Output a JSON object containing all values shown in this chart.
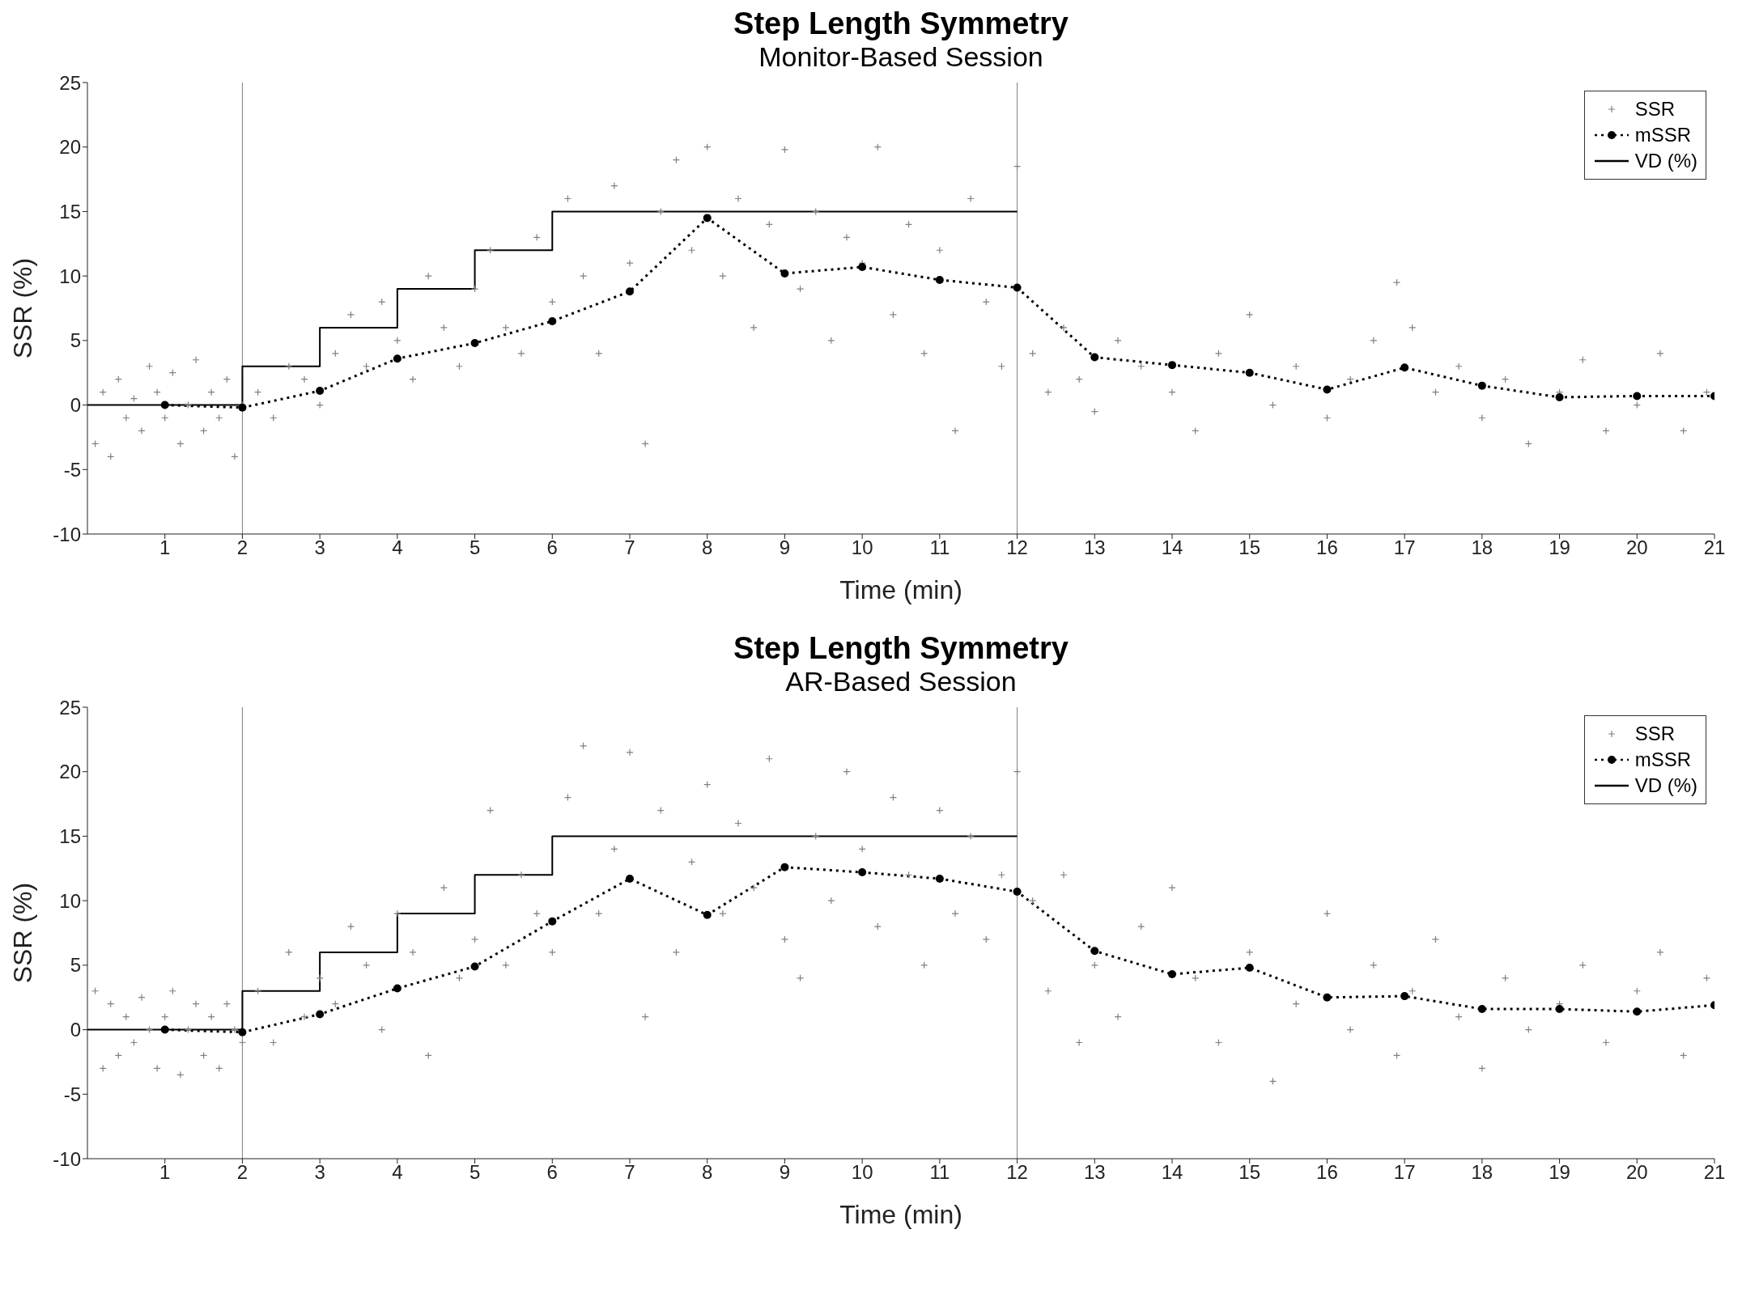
{
  "chart_data": [
    {
      "type": "scatter",
      "title": "Step Length Symmetry",
      "subtitle": "Monitor-Based Session",
      "xlabel": "Time (min)",
      "ylabel": "SSR (%)",
      "xlim": [
        0,
        21
      ],
      "xticks": [
        1,
        2,
        3,
        4,
        5,
        6,
        7,
        8,
        9,
        10,
        11,
        12,
        13,
        14,
        15,
        16,
        17,
        18,
        19,
        20,
        21
      ],
      "ylim": [
        -10,
        25
      ],
      "yticks": [
        -10,
        -5,
        0,
        5,
        10,
        15,
        20,
        25
      ],
      "legend": "top right",
      "ref_lines": [
        {
          "axis": "x",
          "value": 2,
          "color": "#808080"
        },
        {
          "axis": "x",
          "value": 12,
          "color": "#808080"
        }
      ],
      "series": [
        {
          "name": "SSR",
          "marker": "cross",
          "color": "#808080",
          "x": [
            0.1,
            0.2,
            0.3,
            0.4,
            0.5,
            0.6,
            0.7,
            0.8,
            0.9,
            1.0,
            1.1,
            1.2,
            1.3,
            1.4,
            1.5,
            1.6,
            1.7,
            1.8,
            1.9,
            2.0,
            2.2,
            2.4,
            2.6,
            2.8,
            3.0,
            3.2,
            3.4,
            3.6,
            3.8,
            4.0,
            4.2,
            4.4,
            4.6,
            4.8,
            5.0,
            5.2,
            5.4,
            5.6,
            5.8,
            6.0,
            6.2,
            6.4,
            6.6,
            6.8,
            7.0,
            7.2,
            7.4,
            7.6,
            7.8,
            8.0,
            8.2,
            8.4,
            8.6,
            8.8,
            9.0,
            9.2,
            9.4,
            9.6,
            9.8,
            10.0,
            10.2,
            10.4,
            10.6,
            10.8,
            11.0,
            11.2,
            11.4,
            11.6,
            11.8,
            12.0,
            12.2,
            12.4,
            12.6,
            12.8,
            13.0,
            13.3,
            13.6,
            14.0,
            14.3,
            14.6,
            15.0,
            15.3,
            15.6,
            16.0,
            16.3,
            16.6,
            16.9,
            17.1,
            17.4,
            17.7,
            18.0,
            18.3,
            18.6,
            19.0,
            19.3,
            19.6,
            20.0,
            20.3,
            20.6,
            20.9
          ],
          "values": [
            -3,
            1,
            -4,
            2,
            -1,
            0.5,
            -2,
            3,
            1,
            -1,
            2.5,
            -3,
            0,
            3.5,
            -2,
            1,
            -1,
            2,
            -4,
            0,
            1,
            -1,
            3,
            2,
            0,
            4,
            7,
            3,
            8,
            5,
            2,
            10,
            6,
            3,
            9,
            12,
            6,
            4,
            13,
            8,
            16,
            10,
            4,
            17,
            11,
            -3,
            15,
            19,
            12,
            20,
            10,
            16,
            6,
            14,
            19.8,
            9,
            15,
            5,
            13,
            11,
            20,
            7,
            14,
            4,
            12,
            -2,
            16,
            8,
            3,
            18.5,
            4,
            1,
            6,
            2,
            -0.5,
            5,
            3,
            1,
            -2,
            4,
            7,
            0,
            3,
            -1,
            2,
            5,
            9.5,
            6,
            1,
            3,
            -1,
            2,
            -3,
            1,
            3.5,
            -2,
            0,
            4,
            -2,
            1
          ]
        },
        {
          "name": "mSSR",
          "type": "line",
          "marker": "circle",
          "line_style": "dotted",
          "color": "#000000",
          "x": [
            1,
            2,
            3,
            4,
            5,
            6,
            7,
            8,
            9,
            10,
            11,
            12,
            13,
            14,
            15,
            16,
            17,
            18,
            19,
            20,
            21
          ],
          "values": [
            0,
            -0.2,
            1.1,
            3.6,
            4.8,
            6.5,
            8.8,
            14.5,
            10.2,
            10.7,
            9.7,
            9.1,
            3.7,
            3.1,
            2.5,
            1.2,
            2.9,
            1.5,
            0.6,
            0.7,
            0.7
          ]
        },
        {
          "name": "VD (%)",
          "type": "step",
          "line_style": "solid",
          "color": "#000000",
          "x": [
            0,
            2,
            3,
            4,
            5,
            6,
            12
          ],
          "values": [
            0,
            3,
            6,
            9,
            12,
            15,
            15
          ]
        }
      ]
    },
    {
      "type": "scatter",
      "title": "Step Length Symmetry",
      "subtitle": "AR-Based Session",
      "xlabel": "Time (min)",
      "ylabel": "SSR (%)",
      "xlim": [
        0,
        21
      ],
      "xticks": [
        1,
        2,
        3,
        4,
        5,
        6,
        7,
        8,
        9,
        10,
        11,
        12,
        13,
        14,
        15,
        16,
        17,
        18,
        19,
        20,
        21
      ],
      "ylim": [
        -10,
        25
      ],
      "yticks": [
        -10,
        -5,
        0,
        5,
        10,
        15,
        20,
        25
      ],
      "legend": "top right",
      "ref_lines": [
        {
          "axis": "x",
          "value": 2,
          "color": "#808080"
        },
        {
          "axis": "x",
          "value": 12,
          "color": "#808080"
        }
      ],
      "series": [
        {
          "name": "SSR",
          "marker": "cross",
          "color": "#808080",
          "x": [
            0.1,
            0.2,
            0.3,
            0.4,
            0.5,
            0.6,
            0.7,
            0.8,
            0.9,
            1.0,
            1.1,
            1.2,
            1.3,
            1.4,
            1.5,
            1.6,
            1.7,
            1.8,
            1.9,
            2.0,
            2.2,
            2.4,
            2.6,
            2.8,
            3.0,
            3.2,
            3.4,
            3.6,
            3.8,
            4.0,
            4.2,
            4.4,
            4.6,
            4.8,
            5.0,
            5.2,
            5.4,
            5.6,
            5.8,
            6.0,
            6.2,
            6.4,
            6.6,
            6.8,
            7.0,
            7.2,
            7.4,
            7.6,
            7.8,
            8.0,
            8.2,
            8.4,
            8.6,
            8.8,
            9.0,
            9.2,
            9.4,
            9.6,
            9.8,
            10.0,
            10.2,
            10.4,
            10.6,
            10.8,
            11.0,
            11.2,
            11.4,
            11.6,
            11.8,
            12.0,
            12.2,
            12.4,
            12.6,
            12.8,
            13.0,
            13.3,
            13.6,
            14.0,
            14.3,
            14.6,
            15.0,
            15.3,
            15.6,
            16.0,
            16.3,
            16.6,
            16.9,
            17.1,
            17.4,
            17.7,
            18.0,
            18.3,
            18.6,
            19.0,
            19.3,
            19.6,
            20.0,
            20.3,
            20.6,
            20.9
          ],
          "values": [
            3,
            -3,
            2,
            -2,
            1,
            -1,
            2.5,
            0,
            -3,
            1,
            3,
            -3.5,
            0,
            2,
            -2,
            1,
            -3,
            2,
            0,
            -1,
            3,
            -1,
            6,
            1,
            4,
            2,
            8,
            5,
            0,
            9,
            6,
            -2,
            11,
            4,
            7,
            17,
            5,
            12,
            9,
            6,
            18,
            22,
            9,
            14,
            21.5,
            1,
            17,
            6,
            13,
            19,
            9,
            16,
            11,
            21,
            7,
            4,
            15,
            10,
            20,
            14,
            8,
            18,
            12,
            5,
            17,
            9,
            15,
            7,
            12,
            20,
            10,
            3,
            12,
            -1,
            5,
            1,
            8,
            11,
            4,
            -1,
            6,
            -4,
            2,
            9,
            0,
            5,
            -2,
            3,
            7,
            1,
            -3,
            4,
            0,
            2,
            5,
            -1,
            3,
            6,
            -2,
            4
          ]
        },
        {
          "name": "mSSR",
          "type": "line",
          "marker": "circle",
          "line_style": "dotted",
          "color": "#000000",
          "x": [
            1,
            2,
            3,
            4,
            5,
            6,
            7,
            8,
            9,
            10,
            11,
            12,
            13,
            14,
            15,
            16,
            17,
            18,
            19,
            20,
            21
          ],
          "values": [
            0,
            -0.2,
            1.2,
            3.2,
            4.9,
            8.4,
            11.7,
            8.9,
            12.6,
            12.2,
            11.7,
            10.7,
            6.1,
            4.3,
            4.8,
            2.5,
            2.6,
            1.6,
            1.6,
            1.4,
            1.9
          ]
        },
        {
          "name": "VD (%)",
          "type": "step",
          "line_style": "solid",
          "color": "#000000",
          "x": [
            0,
            2,
            3,
            4,
            5,
            6,
            12
          ],
          "values": [
            0,
            3,
            6,
            9,
            12,
            15,
            15
          ]
        }
      ]
    }
  ]
}
